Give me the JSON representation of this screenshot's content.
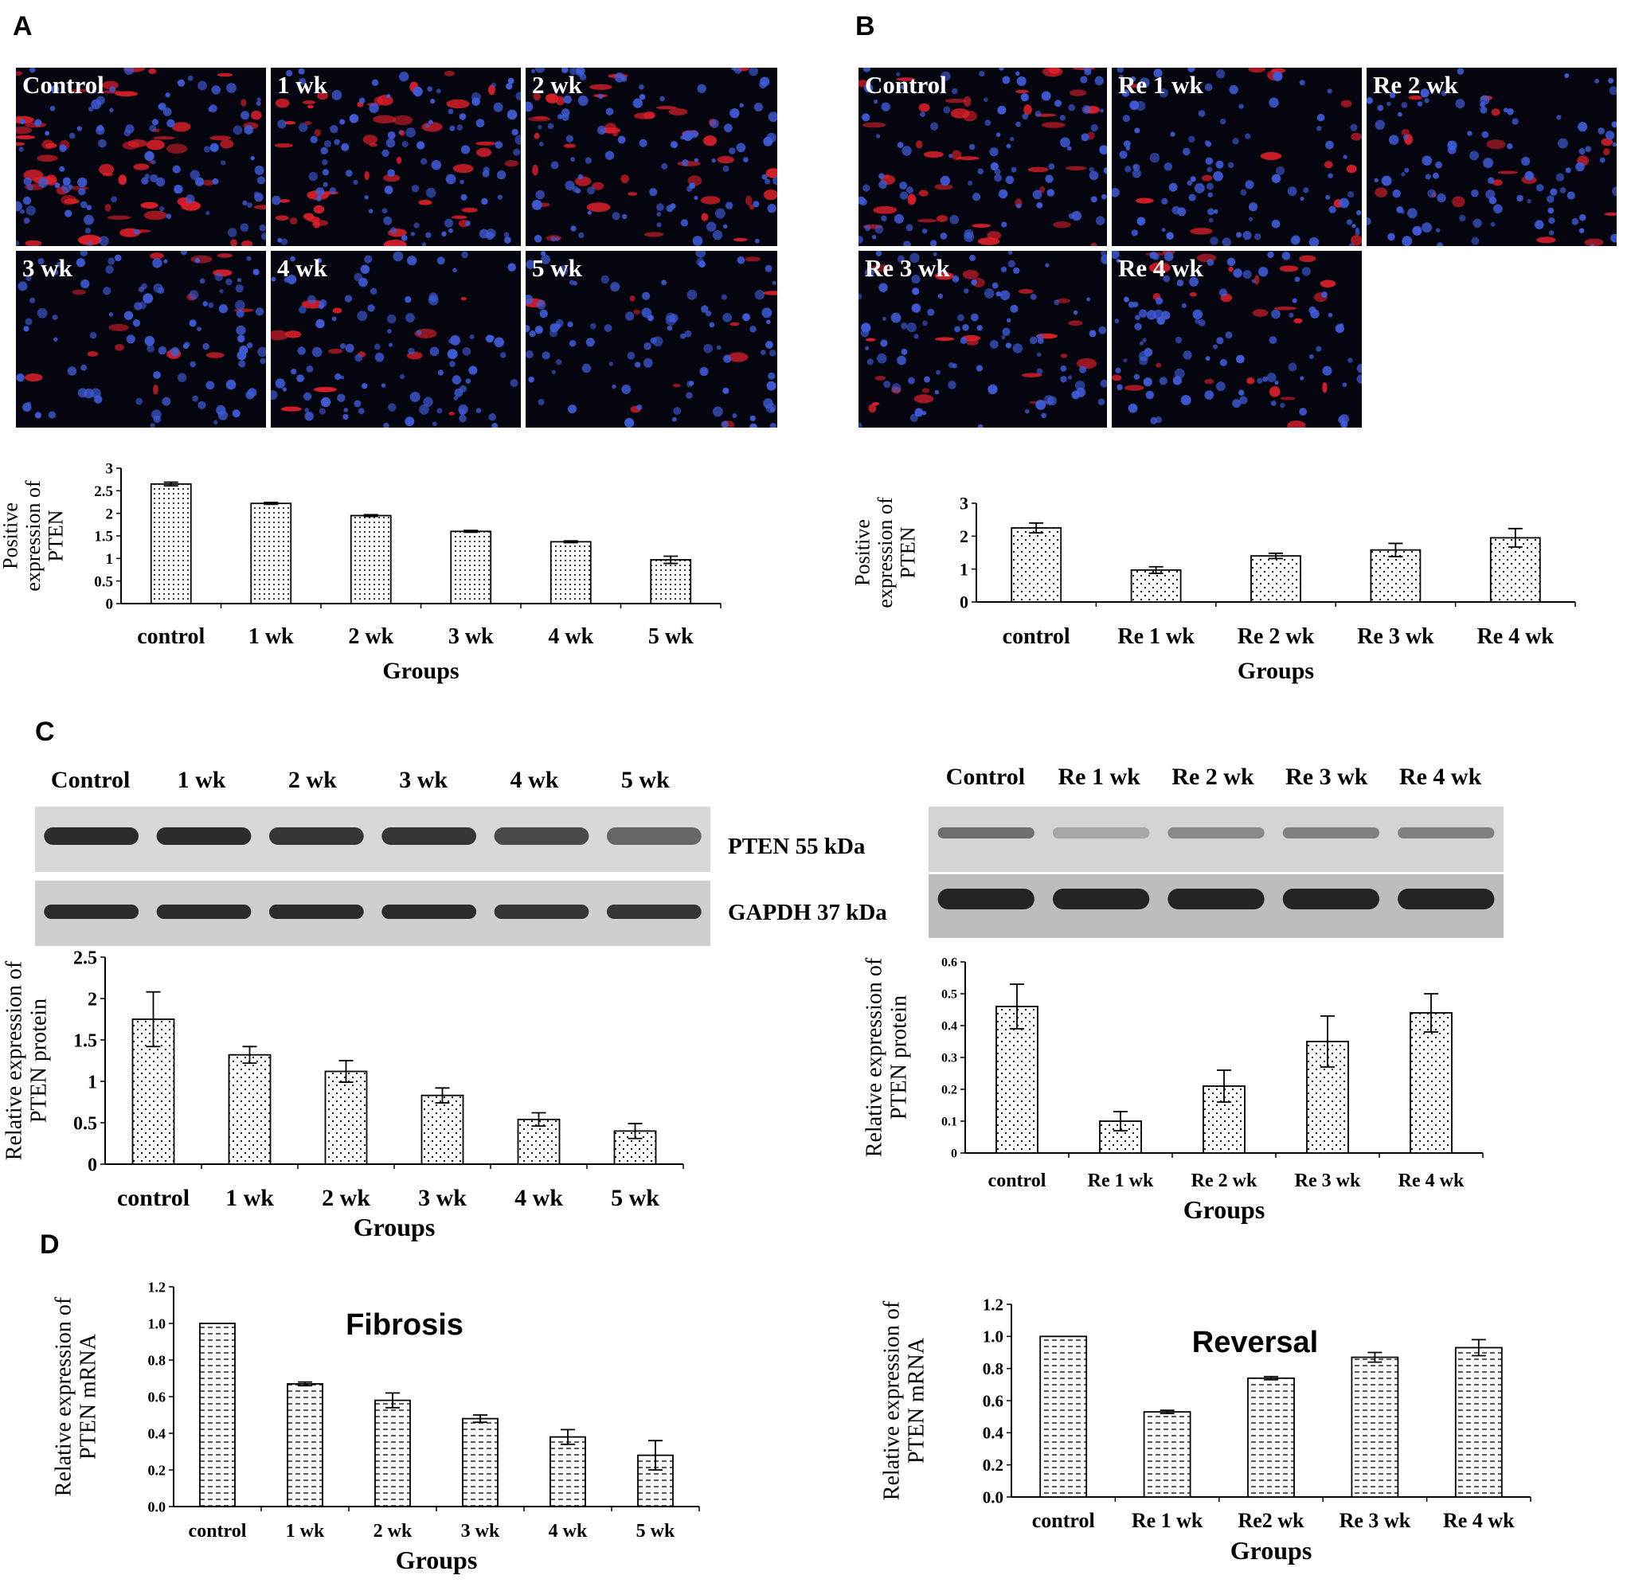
{
  "panels": {
    "A": "A",
    "B": "B",
    "C": "C",
    "D": "D"
  },
  "colors": {
    "nuclei": "#3f5bd6",
    "stain": "#e0202a",
    "background": "#050510"
  },
  "micrographs": {
    "A": [
      "Control",
      "1 wk",
      "2 wk",
      "3 wk",
      "4 wk",
      "5 wk"
    ],
    "B": [
      "Control",
      "Re 1 wk",
      "Re 2 wk",
      "Re 3 wk",
      "Re 4 wk"
    ]
  },
  "blots": {
    "left_lanes": [
      "Control",
      "1 wk",
      "2 wk",
      "3 wk",
      "4 wk",
      "5 wk"
    ],
    "right_lanes": [
      "Control",
      "Re 1 wk",
      "Re 2 wk",
      "Re 3 wk",
      "Re 4 wk"
    ],
    "pten_label": "PTEN     55 kDa",
    "gapdh_label": "GAPDH 37 kDa",
    "left_pten_intensity": [
      0.9,
      0.9,
      0.85,
      0.85,
      0.75,
      0.6
    ],
    "right_pten_intensity": [
      0.55,
      0.25,
      0.4,
      0.45,
      0.45
    ]
  },
  "chart_data": [
    {
      "id": "A-chart",
      "type": "bar",
      "pattern": "dots-dense",
      "categories": [
        "control",
        "1 wk",
        "2 wk",
        "3 wk",
        "4 wk",
        "5 wk"
      ],
      "values": [
        2.65,
        2.22,
        1.95,
        1.6,
        1.37,
        0.97
      ],
      "errors": [
        0.04,
        0.02,
        0.02,
        0.02,
        0.02,
        0.08
      ],
      "ylim": [
        0,
        3
      ],
      "yticks": [
        "0",
        "0.5",
        "1",
        "1.5",
        "2",
        "2.5",
        "3"
      ],
      "ytick_values": [
        0,
        0.5,
        1,
        1.5,
        2,
        2.5,
        3
      ],
      "ylabel": [
        "Positive",
        "expression of",
        "PTEN"
      ],
      "xlabel": "Groups",
      "title": ""
    },
    {
      "id": "B-chart",
      "type": "bar",
      "pattern": "dots-sparse",
      "categories": [
        "control",
        "Re 1 wk",
        "Re 2 wk",
        "Re 3 wk",
        "Re 4 wk"
      ],
      "values": [
        2.25,
        0.97,
        1.4,
        1.58,
        1.95
      ],
      "errors": [
        0.15,
        0.1,
        0.08,
        0.2,
        0.28
      ],
      "ylim": [
        0,
        3
      ],
      "yticks": [
        "0",
        "1",
        "2",
        "3"
      ],
      "ytick_values": [
        0,
        1,
        2,
        3
      ],
      "ylabel": [
        "Positive",
        "expression of",
        "PTEN"
      ],
      "xlabel": "Groups",
      "title": ""
    },
    {
      "id": "C-left-chart",
      "type": "bar",
      "pattern": "dots-sparse",
      "categories": [
        "control",
        "1 wk",
        "2 wk",
        "3 wk",
        "4 wk",
        "5 wk"
      ],
      "values": [
        1.75,
        1.32,
        1.12,
        0.83,
        0.54,
        0.4
      ],
      "errors": [
        0.33,
        0.1,
        0.13,
        0.09,
        0.08,
        0.09
      ],
      "ylim": [
        0,
        2.5
      ],
      "yticks": [
        "0",
        "0.5",
        "1",
        "1.5",
        "2",
        "2.5"
      ],
      "ytick_values": [
        0,
        0.5,
        1,
        1.5,
        2,
        2.5
      ],
      "ylabel": [
        "Relative expression of",
        "PTEN protein"
      ],
      "xlabel": "Groups",
      "title": ""
    },
    {
      "id": "C-right-chart",
      "type": "bar",
      "pattern": "dots-sparse",
      "categories": [
        "control",
        "Re 1 wk",
        "Re 2 wk",
        "Re 3 wk",
        "Re 4 wk"
      ],
      "values": [
        0.46,
        0.1,
        0.21,
        0.35,
        0.44
      ],
      "errors": [
        0.07,
        0.03,
        0.05,
        0.08,
        0.06
      ],
      "ylim": [
        0,
        0.6
      ],
      "yticks": [
        "0",
        "0.1",
        "0.2",
        "0.3",
        "0.4",
        "0.5",
        "0.6"
      ],
      "ytick_values": [
        0,
        0.1,
        0.2,
        0.3,
        0.4,
        0.5,
        0.6
      ],
      "ylabel": [
        "Relative expression of",
        "PTEN protein"
      ],
      "xlabel": "Groups",
      "title": ""
    },
    {
      "id": "D-left-chart",
      "type": "bar",
      "pattern": "dashes",
      "categories": [
        "control",
        "1 wk",
        "2 wk",
        "3 wk",
        "4 wk",
        "5 wk"
      ],
      "values": [
        1.0,
        0.67,
        0.58,
        0.48,
        0.38,
        0.28
      ],
      "errors": [
        0.0,
        0.01,
        0.04,
        0.02,
        0.04,
        0.08
      ],
      "ylim": [
        0,
        1.2
      ],
      "yticks": [
        "0.0",
        "0.2",
        "0.4",
        "0.6",
        "0.8",
        "1.0",
        "1.2"
      ],
      "ytick_values": [
        0,
        0.2,
        0.4,
        0.6,
        0.8,
        1.0,
        1.2
      ],
      "ylabel": [
        "Relative expression of",
        "PTEN mRNA"
      ],
      "xlabel": "Groups",
      "title": "Fibrosis"
    },
    {
      "id": "D-right-chart",
      "type": "bar",
      "pattern": "dashes",
      "categories": [
        "control",
        "Re 1 wk",
        "Re2 wk",
        "Re 3 wk",
        "Re 4 wk"
      ],
      "values": [
        1.0,
        0.53,
        0.74,
        0.87,
        0.93
      ],
      "errors": [
        0.0,
        0.01,
        0.01,
        0.03,
        0.05
      ],
      "ylim": [
        0,
        1.2
      ],
      "yticks": [
        "0.0",
        "0.2",
        "0.4",
        "0.6",
        "0.8",
        "1.0",
        "1.2"
      ],
      "ytick_values": [
        0,
        0.2,
        0.4,
        0.6,
        0.8,
        1.0,
        1.2
      ],
      "ylabel": [
        "Relative expression of",
        "PTEN mRNA"
      ],
      "xlabel": "Groups",
      "title": "Reversal"
    }
  ]
}
